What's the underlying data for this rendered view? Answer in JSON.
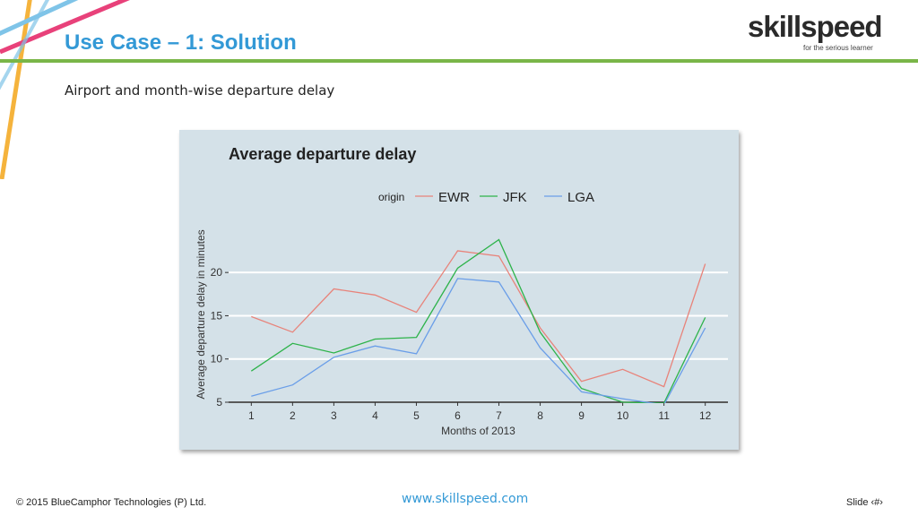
{
  "slide": {
    "title": "Use Case – 1: Solution",
    "subtitle": "Airport and month-wise departure delay",
    "footer_left": "© 2015 BlueCamphor Technologies (P) Ltd.",
    "footer_center": "www.skillspeed.com",
    "footer_right": "Slide ‹#›"
  },
  "logo": {
    "word": "skillspeed",
    "tagline": "for the serious learner",
    "accent_color": "#7ab648"
  },
  "colors": {
    "title": "#3399d6",
    "rule": "#7ab648",
    "panel": "#d4e1e8",
    "deco_orange": "#f5b33c",
    "deco_pink": "#e8417a",
    "deco_blue": "#7fc4e8"
  },
  "chart_data": {
    "type": "line",
    "title": "Average departure delay",
    "xlabel": "Months of 2013",
    "ylabel": "Average departure delay in minutes",
    "legend_title": "origin",
    "legend_position": "top",
    "x": [
      1,
      2,
      3,
      4,
      5,
      6,
      7,
      8,
      9,
      10,
      11,
      12
    ],
    "xlim": [
      0.45,
      12.55
    ],
    "ylim": [
      5,
      25.3
    ],
    "yticks": [
      5,
      10,
      15,
      20
    ],
    "grid": true,
    "series": [
      {
        "name": "EWR",
        "color": "#e8837a",
        "values": [
          14.9,
          13.1,
          18.1,
          17.4,
          15.4,
          22.5,
          21.9,
          13.6,
          7.4,
          8.8,
          6.8,
          21.0
        ]
      },
      {
        "name": "JFK",
        "color": "#2db34a",
        "values": [
          8.6,
          11.8,
          10.7,
          12.3,
          12.5,
          20.5,
          23.8,
          13.1,
          6.6,
          5.0,
          4.9,
          14.8
        ]
      },
      {
        "name": "LGA",
        "color": "#6a9ee8",
        "values": [
          5.7,
          7.0,
          10.2,
          11.5,
          10.6,
          19.3,
          18.9,
          11.3,
          6.2,
          5.4,
          4.7,
          13.6
        ]
      }
    ]
  }
}
